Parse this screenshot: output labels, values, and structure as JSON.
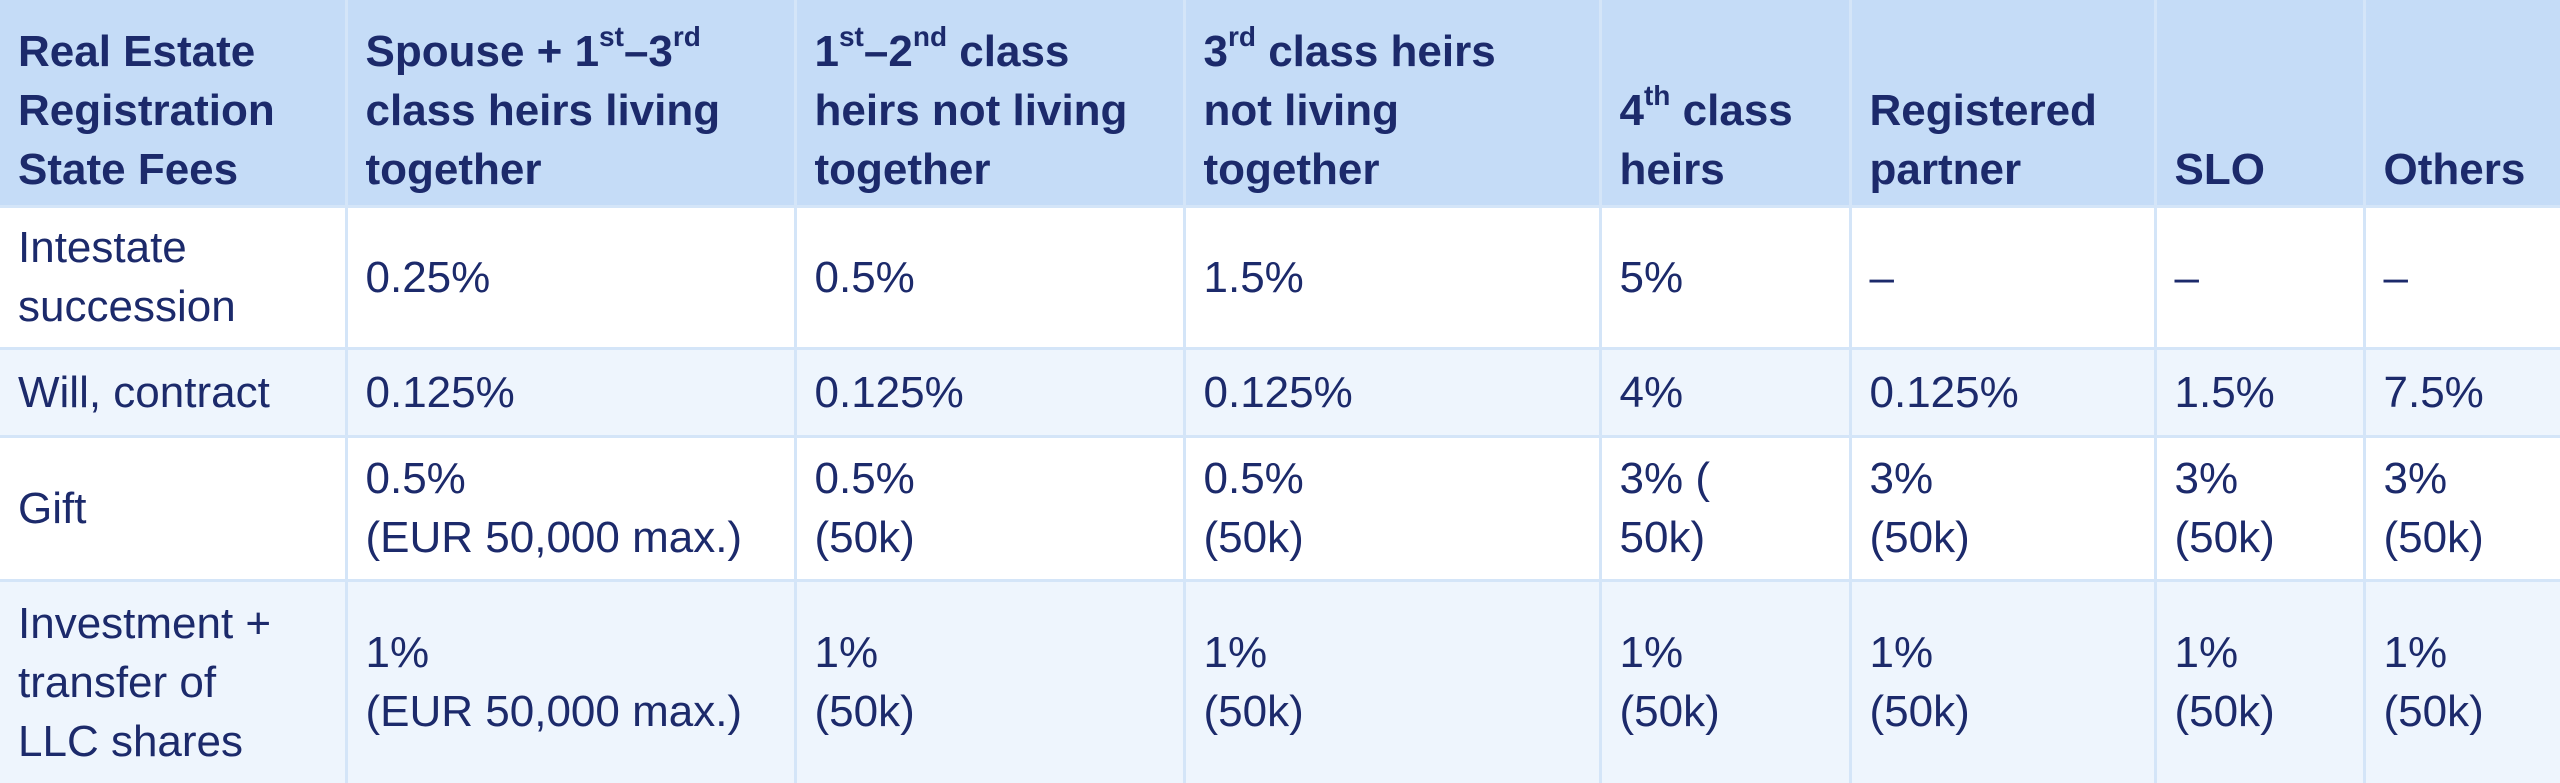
{
  "table": {
    "header": [
      [
        "Real Estate\nRegistration\nState Fees"
      ],
      [
        "Spouse + 1",
        {
          "sup": "st"
        },
        "–3",
        {
          "sup": "rd"
        },
        "\nclass heirs living\ntogether"
      ],
      [
        "1",
        {
          "sup": "st"
        },
        "–2",
        {
          "sup": "nd"
        },
        " class\nheirs not living\ntogether"
      ],
      [
        "3",
        {
          "sup": "rd"
        },
        " class heirs\nnot living\ntogether"
      ],
      [
        "4",
        {
          "sup": "th"
        },
        " class\nheirs"
      ],
      [
        "Registered\npartner"
      ],
      [
        "SLO"
      ],
      [
        "Others"
      ]
    ],
    "rows": [
      [
        "Intestate\nsuccession",
        "0.25%",
        "0.5%",
        "1.5%",
        "5%",
        "–",
        "–",
        "–"
      ],
      [
        "Will, contract",
        "0.125%",
        "0.125%",
        "0.125%",
        "4%",
        "0.125%",
        "1.5%",
        "7.5%"
      ],
      [
        "Gift",
        "0.5%\n(EUR 50,000 max.)",
        "0.5%\n(50k)",
        "0.5%\n(50k)",
        "3% (\n50k)",
        "3%\n(50k)",
        "3%\n(50k)",
        "3%\n(50k)"
      ],
      [
        "Investment +\ntransfer of\nLLC shares",
        "1%\n(EUR 50,000 max.)",
        "1%\n(50k)",
        "1%\n(50k)",
        "1%\n(50k)",
        "1%\n(50k)",
        "1%\n(50k)",
        "1%\n(50k)"
      ]
    ]
  }
}
